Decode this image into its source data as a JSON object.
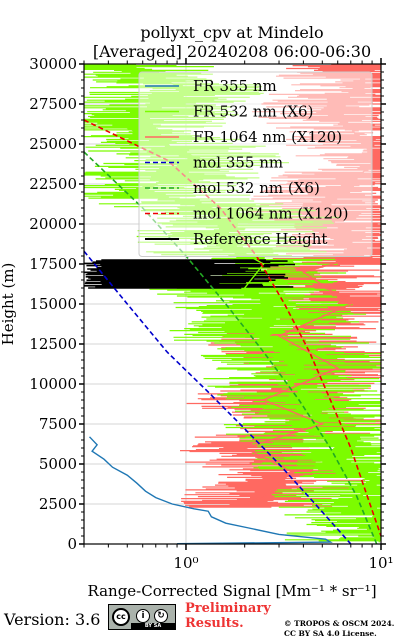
{
  "chart_data": {
    "type": "line",
    "title": "pollyxt_cpv at Mindelo",
    "subtitle": "[Averaged] 20240208 06:00-06:30",
    "xlabel": "Range-Corrected Signal [Mm⁻¹ * sr⁻¹]",
    "ylabel": "Height (m)",
    "xscale": "log",
    "xlim": [
      0.3,
      10
    ],
    "ylim": [
      0,
      30000
    ],
    "x_ticks": [
      1,
      10
    ],
    "x_tick_labels": [
      "10⁰",
      "10¹"
    ],
    "y_ticks": [
      0,
      2500,
      5000,
      7500,
      10000,
      12500,
      15000,
      17500,
      20000,
      22500,
      25000,
      27500,
      30000
    ],
    "grid": true,
    "legend_position": "top-right",
    "series": [
      {
        "name": "FR 355 nm",
        "color": "#1f77b4",
        "style": "solid",
        "points": [
          [
            0.32,
            6700
          ],
          [
            0.35,
            6200
          ],
          [
            0.33,
            5800
          ],
          [
            0.38,
            5300
          ],
          [
            0.42,
            4800
          ],
          [
            0.5,
            4300
          ],
          [
            0.56,
            3800
          ],
          [
            0.62,
            3300
          ],
          [
            0.7,
            2900
          ],
          [
            0.85,
            2500
          ],
          [
            1.1,
            2200
          ],
          [
            1.3,
            2050
          ],
          [
            1.35,
            1700
          ],
          [
            1.6,
            1300
          ],
          [
            2.1,
            1000
          ],
          [
            3.0,
            600
          ],
          [
            5.2,
            300
          ],
          [
            5.5,
            120
          ],
          [
            0.9,
            20
          ]
        ]
      },
      {
        "name": "FR 532 nm (X6)",
        "color": "#7cfc00",
        "style": "solid",
        "points": [
          [
            0.4,
            30000
          ],
          [
            1.0,
            28500
          ],
          [
            0.5,
            26000
          ],
          [
            1.2,
            24000
          ],
          [
            0.6,
            22000
          ],
          [
            2.0,
            20500
          ],
          [
            1.5,
            19000
          ],
          [
            2.5,
            17500
          ],
          [
            2.0,
            16000
          ],
          [
            3.0,
            14500
          ],
          [
            2.5,
            13000
          ],
          [
            4.0,
            11500
          ],
          [
            3.5,
            10000
          ],
          [
            5.0,
            8500
          ],
          [
            4.5,
            7000
          ],
          [
            7.0,
            6000
          ],
          [
            6.0,
            5000
          ],
          [
            9.0,
            4200
          ],
          [
            8.0,
            3000
          ],
          [
            9.5,
            1500
          ],
          [
            9.8,
            100
          ]
        ]
      },
      {
        "name": "FR 1064 nm (X120)",
        "color": "#ff6961",
        "style": "solid",
        "points": [
          [
            9.0,
            30000
          ],
          [
            6.0,
            27000
          ],
          [
            9.5,
            24000
          ],
          [
            5.0,
            21000
          ],
          [
            8.0,
            18000
          ],
          [
            4.0,
            17000
          ],
          [
            7.0,
            15000
          ],
          [
            3.0,
            13000
          ],
          [
            6.0,
            11000
          ],
          [
            2.5,
            9000
          ],
          [
            5.0,
            7500
          ],
          [
            2.0,
            6000
          ],
          [
            3.5,
            4500
          ],
          [
            2.5,
            3000
          ],
          [
            2.0,
            2500
          ]
        ]
      },
      {
        "name": "mol 355 nm",
        "color": "#0000cc",
        "style": "dashed",
        "points": [
          [
            0.3,
            18300
          ],
          [
            0.5,
            15000
          ],
          [
            0.8,
            12000
          ],
          [
            1.3,
            9500
          ],
          [
            2.0,
            7200
          ],
          [
            3.0,
            5000
          ],
          [
            4.6,
            2500
          ],
          [
            7.0,
            0
          ]
        ]
      },
      {
        "name": "mol 532 nm (X6)",
        "color": "#22aa22",
        "style": "dashed",
        "points": [
          [
            0.3,
            24500
          ],
          [
            0.6,
            21000
          ],
          [
            1.0,
            18000
          ],
          [
            1.6,
            15000
          ],
          [
            2.5,
            12000
          ],
          [
            3.8,
            9000
          ],
          [
            5.5,
            6000
          ],
          [
            7.5,
            3000
          ],
          [
            9.5,
            0
          ]
        ]
      },
      {
        "name": "mol 1064 nm (X120)",
        "color": "#ee0000",
        "style": "dashed",
        "points": [
          [
            0.3,
            26500
          ],
          [
            0.8,
            24000
          ],
          [
            1.5,
            21000
          ],
          [
            2.3,
            18000
          ],
          [
            3.2,
            15000
          ],
          [
            4.3,
            12000
          ],
          [
            5.5,
            9000
          ],
          [
            7.0,
            6000
          ],
          [
            8.5,
            3000
          ],
          [
            10.0,
            500
          ]
        ]
      },
      {
        "name": "Reference Height",
        "color": "#000000",
        "style": "solid",
        "band": [
          16000,
          17800
        ],
        "points": [
          [
            0.3,
            16000
          ],
          [
            4.0,
            16000
          ],
          [
            0.3,
            17800
          ],
          [
            4.0,
            17800
          ]
        ]
      }
    ]
  },
  "footer": {
    "version": "Version: 3.6",
    "license_badge": {
      "cc": "cc",
      "by_sa": "BY SA"
    },
    "preliminary": [
      "Preliminary",
      "Results."
    ],
    "copyright": [
      "© TROPOS & OSCM 2024.",
      "CC BY SA 4.0 License."
    ]
  }
}
